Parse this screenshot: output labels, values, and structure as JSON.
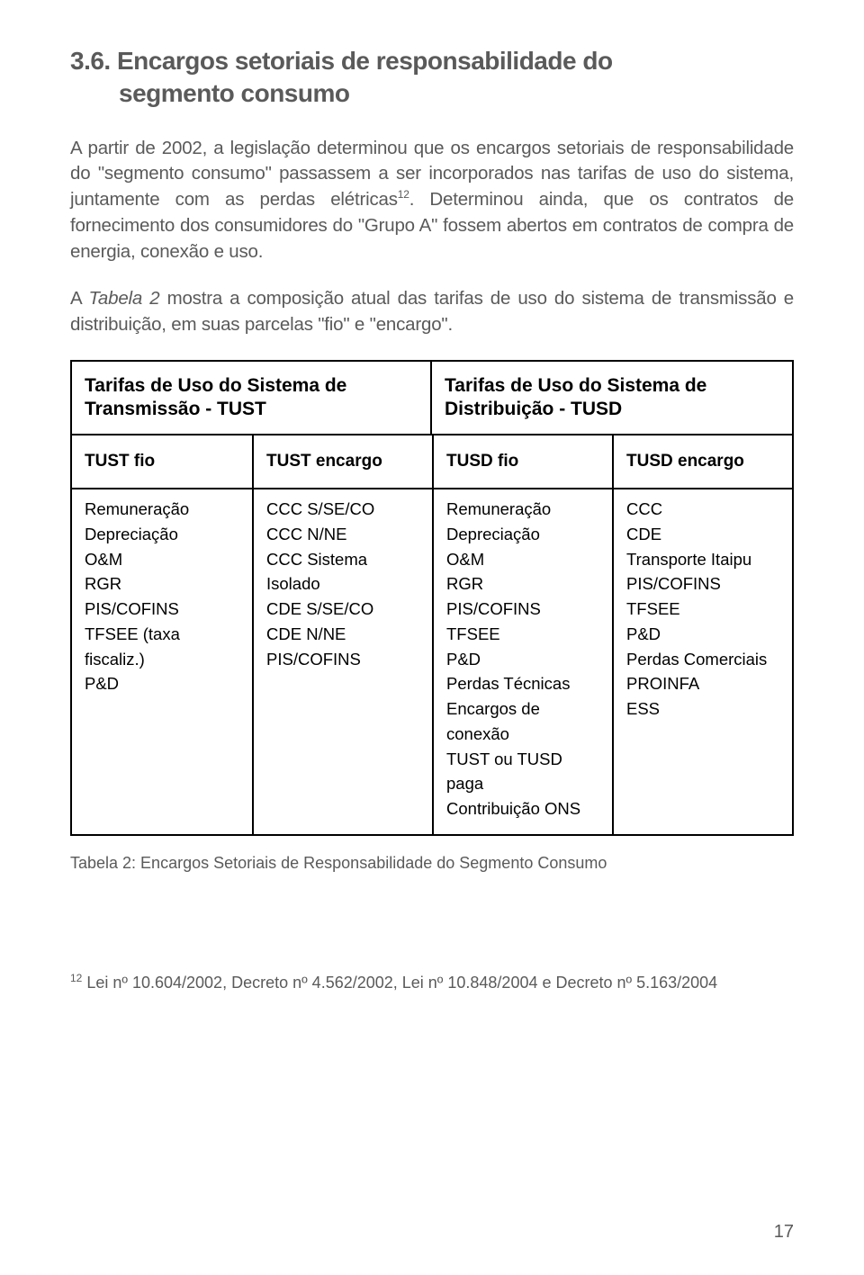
{
  "section": {
    "number": "3.6.",
    "title_line1": "Encargos setoriais de responsabilidade do",
    "title_line2": "segmento consumo"
  },
  "paragraphs": {
    "p1": "A partir de 2002, a legislação determinou que os encargos setoriais de responsabilidade do \"segmento consumo\" passassem a ser incorporados nas tarifas de uso do sistema, juntamente com as perdas elétricas",
    "p1_sup": "12",
    "p1_tail": ". Determinou ainda, que os contratos de fornecimento dos consumidores do \"Grupo A\" fossem abertos em contratos de compra de energia, conexão e uso.",
    "p2_a": "A ",
    "p2_italic": "Tabela 2",
    "p2_b": " mostra a composição atual das tarifas de uso do sistema de transmissão e distribuição, em suas parcelas \"fio\" e \"encargo\"."
  },
  "table": {
    "head_left": "Tarifas de Uso do Sistema de Transmissão - TUST",
    "head_right": "Tarifas de Uso do Sistema de Distribuição - TUSD",
    "sub": [
      "TUST fio",
      "TUST encargo",
      "TUSD fio",
      "TUSD encargo"
    ],
    "cols": [
      [
        "Remuneração",
        "Depreciação",
        "O&M",
        "RGR",
        "PIS/COFINS",
        "TFSEE (taxa fiscaliz.)",
        "P&D"
      ],
      [
        "CCC S/SE/CO",
        "CCC N/NE",
        "CCC Sistema Isolado",
        "CDE S/SE/CO",
        "CDE N/NE",
        "PIS/COFINS"
      ],
      [
        "Remuneração",
        "Depreciação",
        "O&M",
        "RGR",
        "PIS/COFINS",
        "TFSEE",
        "P&D",
        "Perdas Técnicas",
        "Encargos de conexão",
        "TUST ou TUSD paga",
        "Contribuição ONS"
      ],
      [
        "CCC",
        "CDE",
        "Transporte Itaipu",
        "PIS/COFINS",
        "TFSEE",
        "P&D",
        "Perdas Comerciais",
        "PROINFA",
        "ESS"
      ]
    ]
  },
  "caption": "Tabela 2: Encargos Setoriais de Responsabilidade do Segmento Consumo",
  "footnote": {
    "num": "12",
    "text": " Lei nº 10.604/2002, Decreto nº 4.562/2002, Lei nº 10.848/2004 e Decreto nº 5.163/2004"
  },
  "page_number": "17"
}
